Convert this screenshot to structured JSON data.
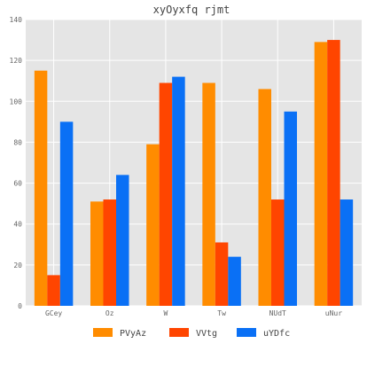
{
  "chart_data": {
    "type": "bar",
    "title": "xyOyxfq rjmt",
    "xlabel": "",
    "ylabel": "",
    "categories": [
      "GCey",
      "Oz",
      "W",
      "Tw",
      "NUdT",
      "uNur"
    ],
    "ylim": [
      0,
      140
    ],
    "yticks": [
      0,
      20,
      40,
      60,
      80,
      100,
      120,
      140
    ],
    "grid": true,
    "legend_position": "bottom-center",
    "series": [
      {
        "name": "PVyAz",
        "color": "#FF8C00",
        "values": [
          115,
          51,
          79,
          109,
          106,
          129
        ]
      },
      {
        "name": "VVtg",
        "color": "#FF4500",
        "values": [
          15,
          52,
          109,
          31,
          52,
          130
        ]
      },
      {
        "name": "uYDfc",
        "color": "#0A70F5",
        "values": [
          90,
          64,
          112,
          24,
          95,
          52
        ]
      }
    ]
  }
}
